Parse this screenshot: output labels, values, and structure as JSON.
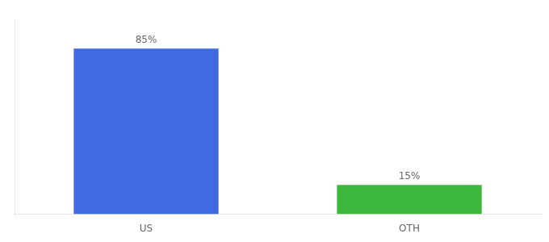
{
  "chart_data": {
    "type": "bar",
    "categories": [
      "US",
      "OTH"
    ],
    "values": [
      85,
      15
    ],
    "value_labels": [
      "85%",
      "15%"
    ],
    "colors": [
      "#4169e1",
      "#3cb83c"
    ],
    "ylim": [
      0,
      100
    ],
    "data_labels": true,
    "tick_labels": "x",
    "grid": false
  }
}
